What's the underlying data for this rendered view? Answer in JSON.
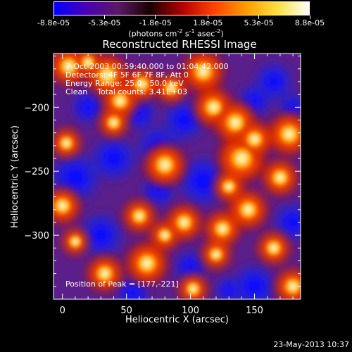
{
  "colorbar": {
    "tick_labels": [
      "-8.8e-05",
      "-5.3e-05",
      "-1.8e-05",
      "1.8e-05",
      "5.3e-05",
      "8.8e-05"
    ],
    "ticks": [
      -8.8e-05,
      -5.3e-05,
      -1.8e-05,
      1.8e-05,
      5.3e-05,
      8.8e-05
    ],
    "range": [
      -8.8e-05,
      8.8e-05
    ],
    "units": {
      "prefix": "(photons cm",
      "exp1": "-2",
      "mid1": " s",
      "exp2": "-1",
      "mid2": " asec",
      "exp3": "-2",
      "suffix": ")"
    },
    "colors": [
      "#0000ff",
      "#4b00b3",
      "#5a1a66",
      "#1a0000",
      "#b00000",
      "#ff4000",
      "#ff9a00",
      "#ffe040",
      "#ffffff"
    ]
  },
  "plot": {
    "title": "Reconstructed RHESSI Image",
    "info_lines": [
      "7-Oct-2003 00:59:40.000 to 01:04:42.000",
      "Detectors: 4F 5F 6F 7F 8F, Att 0",
      "Energy Range: 25.0 - 50.0 keV",
      "Clean    Total counts: 3.41E+03"
    ],
    "peak_text": "Position of Peak = [177,-221]",
    "peak": [
      177,
      -221
    ],
    "xlabel": "Heliocentric X (arcsec)",
    "ylabel": "Heliocentric Y (arcsec)",
    "x_ticks": [
      0,
      50,
      100,
      150
    ],
    "y_ticks": [
      -200,
      -250,
      -300
    ],
    "xlim": [
      -7,
      186
    ],
    "ylim": [
      -350,
      -158
    ],
    "blobs_hot": [
      [
        5,
        -168,
        13
      ],
      [
        20,
        -165,
        10
      ],
      [
        35,
        -175,
        14
      ],
      [
        45,
        -195,
        12
      ],
      [
        40,
        -212,
        10
      ],
      [
        62,
        -182,
        11
      ],
      [
        85,
        -185,
        10
      ],
      [
        110,
        -172,
        14
      ],
      [
        118,
        -200,
        13
      ],
      [
        135,
        -212,
        14
      ],
      [
        140,
        -240,
        16
      ],
      [
        150,
        -225,
        12
      ],
      [
        177,
        -221,
        14
      ],
      [
        170,
        -255,
        12
      ],
      [
        80,
        -245,
        14
      ],
      [
        60,
        -285,
        11
      ],
      [
        80,
        -300,
        10
      ],
      [
        95,
        -290,
        12
      ],
      [
        125,
        -295,
        12
      ],
      [
        145,
        -280,
        13
      ],
      [
        120,
        -315,
        10
      ],
      [
        66,
        -322,
        14
      ],
      [
        33,
        -330,
        12
      ],
      [
        0,
        -277,
        12
      ],
      [
        3,
        -228,
        10
      ],
      [
        165,
        -310,
        11
      ],
      [
        180,
        -340,
        12
      ],
      [
        102,
        -342,
        10
      ],
      [
        10,
        -305,
        9
      ],
      [
        130,
        -262,
        10
      ]
    ],
    "blobs_cold": [
      [
        10,
        -255,
        18
      ],
      [
        40,
        -240,
        16
      ],
      [
        75,
        -232,
        16
      ],
      [
        110,
        -258,
        18
      ],
      [
        95,
        -210,
        15
      ],
      [
        60,
        -205,
        12
      ],
      [
        30,
        -300,
        16
      ],
      [
        150,
        -340,
        16
      ],
      [
        180,
        -290,
        14
      ],
      [
        165,
        -180,
        14
      ],
      [
        20,
        -200,
        12
      ],
      [
        150,
        -195,
        12
      ],
      [
        100,
        -325,
        12
      ],
      [
        55,
        -345,
        12
      ],
      [
        180,
        -200,
        10
      ],
      [
        130,
        -343,
        10
      ],
      [
        75,
        -265,
        12
      ]
    ]
  },
  "timestamp": "23-May-2013 10:37"
}
